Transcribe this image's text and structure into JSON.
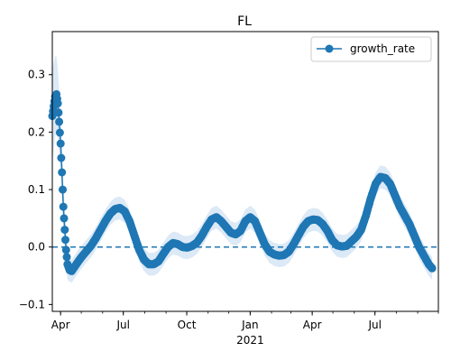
{
  "chart_data": {
    "type": "line",
    "title": "FL",
    "xlabel": "",
    "ylabel": "",
    "x_start": "2020-03-20",
    "x_end": "2021-10-01",
    "ylim": [
      -0.112,
      0.375
    ],
    "yticks": [
      -0.1,
      0.0,
      0.1,
      0.2,
      0.3
    ],
    "ytick_labels": [
      "−0.1",
      "0.0",
      "0.1",
      "0.2",
      "0.3"
    ],
    "xticks": [
      {
        "date": "2020-04-01",
        "label": "Apr"
      },
      {
        "date": "2020-07-01",
        "label": "Jul"
      },
      {
        "date": "2020-10-01",
        "label": "Oct"
      },
      {
        "date": "2021-01-01",
        "label": "Jan"
      },
      {
        "date": "2021-04-01",
        "label": "Apr"
      },
      {
        "date": "2021-07-01",
        "label": "Jul"
      }
    ],
    "year_label": {
      "date": "2021-01-01",
      "label": "2021"
    },
    "reference_line": {
      "y": 0.0,
      "style": "dashed"
    },
    "legend": {
      "position": "top-right",
      "entries": [
        "growth_rate"
      ]
    },
    "colors": {
      "series": "#1f77b4",
      "band": "#dce9f6"
    },
    "series": [
      {
        "name": "growth_rate",
        "points": [
          [
            "2020-03-20",
            0.228
          ],
          [
            "2020-03-22",
            0.245
          ],
          [
            "2020-03-24",
            0.262
          ],
          [
            "2020-03-26",
            0.266
          ],
          [
            "2020-03-28",
            0.25
          ],
          [
            "2020-03-30",
            0.218
          ],
          [
            "2020-04-01",
            0.18
          ],
          [
            "2020-04-03",
            0.13
          ],
          [
            "2020-04-05",
            0.07
          ],
          [
            "2020-04-07",
            0.03
          ],
          [
            "2020-04-09",
            -0.005
          ],
          [
            "2020-04-11",
            -0.03
          ],
          [
            "2020-04-14",
            -0.04
          ],
          [
            "2020-04-17",
            -0.042
          ],
          [
            "2020-04-21",
            -0.035
          ],
          [
            "2020-04-25",
            -0.028
          ],
          [
            "2020-05-01",
            -0.018
          ],
          [
            "2020-05-08",
            -0.008
          ],
          [
            "2020-05-15",
            0.002
          ],
          [
            "2020-05-22",
            0.015
          ],
          [
            "2020-05-29",
            0.03
          ],
          [
            "2020-06-05",
            0.045
          ],
          [
            "2020-06-12",
            0.058
          ],
          [
            "2020-06-19",
            0.066
          ],
          [
            "2020-06-26",
            0.068
          ],
          [
            "2020-07-03",
            0.062
          ],
          [
            "2020-07-10",
            0.045
          ],
          [
            "2020-07-17",
            0.02
          ],
          [
            "2020-07-24",
            -0.005
          ],
          [
            "2020-07-31",
            -0.022
          ],
          [
            "2020-08-07",
            -0.03
          ],
          [
            "2020-08-14",
            -0.03
          ],
          [
            "2020-08-21",
            -0.025
          ],
          [
            "2020-08-28",
            -0.012
          ],
          [
            "2020-09-04",
            0.0
          ],
          [
            "2020-09-11",
            0.007
          ],
          [
            "2020-09-18",
            0.005
          ],
          [
            "2020-09-25",
            0.0
          ],
          [
            "2020-10-02",
            -0.001
          ],
          [
            "2020-10-09",
            0.002
          ],
          [
            "2020-10-16",
            0.008
          ],
          [
            "2020-10-23",
            0.02
          ],
          [
            "2020-10-30",
            0.035
          ],
          [
            "2020-11-06",
            0.048
          ],
          [
            "2020-11-13",
            0.052
          ],
          [
            "2020-11-20",
            0.045
          ],
          [
            "2020-11-27",
            0.035
          ],
          [
            "2020-12-04",
            0.025
          ],
          [
            "2020-12-11",
            0.022
          ],
          [
            "2020-12-18",
            0.028
          ],
          [
            "2020-12-25",
            0.045
          ],
          [
            "2021-01-01",
            0.052
          ],
          [
            "2021-01-08",
            0.045
          ],
          [
            "2021-01-15",
            0.025
          ],
          [
            "2021-01-22",
            0.005
          ],
          [
            "2021-01-29",
            -0.008
          ],
          [
            "2021-02-05",
            -0.013
          ],
          [
            "2021-02-12",
            -0.015
          ],
          [
            "2021-02-19",
            -0.014
          ],
          [
            "2021-02-26",
            -0.008
          ],
          [
            "2021-03-05",
            0.005
          ],
          [
            "2021-03-12",
            0.02
          ],
          [
            "2021-03-19",
            0.035
          ],
          [
            "2021-03-26",
            0.045
          ],
          [
            "2021-04-02",
            0.048
          ],
          [
            "2021-04-09",
            0.047
          ],
          [
            "2021-04-16",
            0.04
          ],
          [
            "2021-04-23",
            0.028
          ],
          [
            "2021-04-30",
            0.012
          ],
          [
            "2021-05-07",
            0.003
          ],
          [
            "2021-05-14",
            0.001
          ],
          [
            "2021-05-21",
            0.002
          ],
          [
            "2021-05-28",
            0.01
          ],
          [
            "2021-06-04",
            0.018
          ],
          [
            "2021-06-11",
            0.03
          ],
          [
            "2021-06-18",
            0.055
          ],
          [
            "2021-06-25",
            0.085
          ],
          [
            "2021-07-02",
            0.11
          ],
          [
            "2021-07-09",
            0.122
          ],
          [
            "2021-07-16",
            0.12
          ],
          [
            "2021-07-23",
            0.11
          ],
          [
            "2021-07-30",
            0.09
          ],
          [
            "2021-08-06",
            0.07
          ],
          [
            "2021-08-13",
            0.055
          ],
          [
            "2021-08-20",
            0.04
          ],
          [
            "2021-08-27",
            0.02
          ],
          [
            "2021-09-03",
            0.0
          ],
          [
            "2021-09-10",
            -0.015
          ],
          [
            "2021-09-17",
            -0.03
          ],
          [
            "2021-09-22",
            -0.037
          ]
        ]
      }
    ]
  }
}
